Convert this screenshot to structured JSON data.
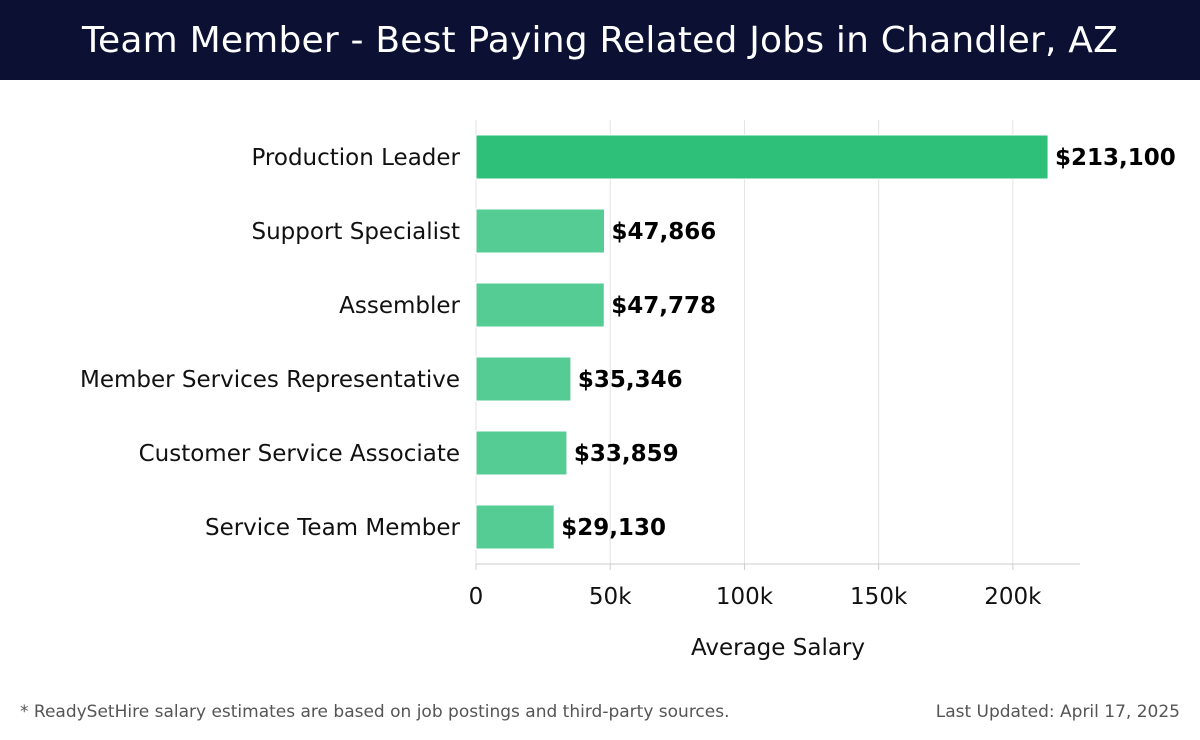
{
  "header": {
    "title": "Team Member - Best Paying Related Jobs in Chandler, AZ"
  },
  "chart_data": {
    "type": "bar",
    "orientation": "horizontal",
    "categories": [
      "Production Leader",
      "Support Specialist",
      "Assembler",
      "Member Services Representative",
      "Customer Service Associate",
      "Service Team Member"
    ],
    "values": [
      213100,
      47866,
      47778,
      35346,
      33859,
      29130
    ],
    "value_labels": [
      "$213,100",
      "$47,866",
      "$47,778",
      "$35,346",
      "$33,859",
      "$29,130"
    ],
    "title": "Team Member - Best Paying Related Jobs in Chandler, AZ",
    "xlabel": "Average Salary",
    "ylabel": "",
    "xlim": [
      0,
      225000
    ],
    "xticks": [
      0,
      50000,
      100000,
      150000,
      200000
    ],
    "xtick_labels": [
      "0",
      "50k",
      "100k",
      "150k",
      "200k"
    ],
    "grid": "vertical",
    "colors": {
      "highlight": "#2ebf79",
      "bar": "#54cc93",
      "grid": "#e2e2e2",
      "axis": "#cccccc"
    }
  },
  "footer": {
    "note": "* ReadySetHire salary estimates are based on job postings and third-party sources.",
    "updated": "Last Updated: April 17, 2025"
  }
}
